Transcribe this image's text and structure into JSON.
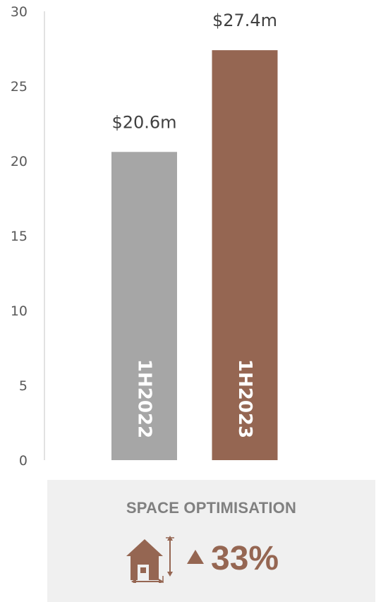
{
  "chart_data": {
    "type": "bar",
    "categories": [
      "1H2022",
      "1H2023"
    ],
    "values": [
      20.6,
      27.4
    ],
    "data_labels": [
      "$20.6m",
      "$27.4m"
    ],
    "colors": [
      "#a6a6a6",
      "#956652"
    ],
    "ylim": [
      0,
      30
    ],
    "yticks": [
      "0",
      "5",
      "10",
      "15",
      "20",
      "25",
      "30"
    ],
    "title": "",
    "xlabel": "",
    "ylabel": "",
    "grid": false,
    "category_label_placement": "inside-bar-rotated"
  },
  "kpi": {
    "title": "SPACE OPTIMISATION",
    "arrow": "up-triangle",
    "value": "33%",
    "icon": "house-dimensions-icon",
    "accent_color": "#956652"
  }
}
